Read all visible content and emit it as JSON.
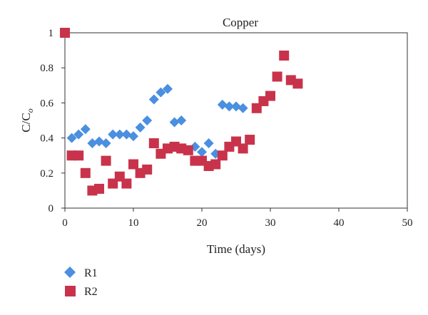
{
  "chart_data": {
    "type": "scatter",
    "title": "Copper",
    "xlabel": "Time (days)",
    "ylabel_main": "C/C",
    "ylabel_sub": "o",
    "xlim": [
      0,
      50
    ],
    "ylim": [
      0,
      1
    ],
    "x_ticks": [
      0,
      10,
      20,
      30,
      40,
      50
    ],
    "y_ticks": [
      0,
      0.2,
      0.4,
      0.6,
      0.8,
      1
    ],
    "y_tick_labels": [
      "0",
      "0.2",
      "0.4",
      "0.6",
      "0.8",
      "1"
    ],
    "grid": false,
    "legend_position": "bottom-left",
    "series": [
      {
        "name": "R1",
        "marker": "diamond",
        "color": "#4a8fe0",
        "points": [
          [
            1,
            0.4
          ],
          [
            2,
            0.42
          ],
          [
            3,
            0.45
          ],
          [
            4,
            0.37
          ],
          [
            5,
            0.38
          ],
          [
            6,
            0.37
          ],
          [
            7,
            0.42
          ],
          [
            8,
            0.42
          ],
          [
            9,
            0.42
          ],
          [
            10,
            0.41
          ],
          [
            11,
            0.46
          ],
          [
            12,
            0.5
          ],
          [
            13,
            0.62
          ],
          [
            14,
            0.66
          ],
          [
            15,
            0.68
          ],
          [
            16,
            0.49
          ],
          [
            17,
            0.5
          ],
          [
            18,
            0.33
          ],
          [
            19,
            0.35
          ],
          [
            20,
            0.32
          ],
          [
            21,
            0.37
          ],
          [
            22,
            0.31
          ],
          [
            23,
            0.59
          ],
          [
            24,
            0.58
          ],
          [
            25,
            0.58
          ],
          [
            26,
            0.57
          ]
        ]
      },
      {
        "name": "R2",
        "marker": "square",
        "color": "#c8334b",
        "points": [
          [
            0,
            1.0
          ],
          [
            1,
            0.3
          ],
          [
            2,
            0.3
          ],
          [
            3,
            0.2
          ],
          [
            4,
            0.1
          ],
          [
            5,
            0.11
          ],
          [
            6,
            0.27
          ],
          [
            7,
            0.14
          ],
          [
            8,
            0.18
          ],
          [
            9,
            0.14
          ],
          [
            10,
            0.25
          ],
          [
            11,
            0.2
          ],
          [
            12,
            0.22
          ],
          [
            13,
            0.37
          ],
          [
            14,
            0.31
          ],
          [
            15,
            0.34
          ],
          [
            16,
            0.35
          ],
          [
            17,
            0.34
          ],
          [
            18,
            0.33
          ],
          [
            19,
            0.27
          ],
          [
            20,
            0.27
          ],
          [
            21,
            0.24
          ],
          [
            22,
            0.25
          ],
          [
            23,
            0.3
          ],
          [
            24,
            0.35
          ],
          [
            25,
            0.38
          ],
          [
            26,
            0.34
          ],
          [
            27,
            0.39
          ],
          [
            28,
            0.57
          ],
          [
            29,
            0.61
          ],
          [
            30,
            0.64
          ],
          [
            31,
            0.75
          ],
          [
            32,
            0.87
          ],
          [
            33,
            0.73
          ],
          [
            34,
            0.71
          ]
        ]
      }
    ]
  }
}
